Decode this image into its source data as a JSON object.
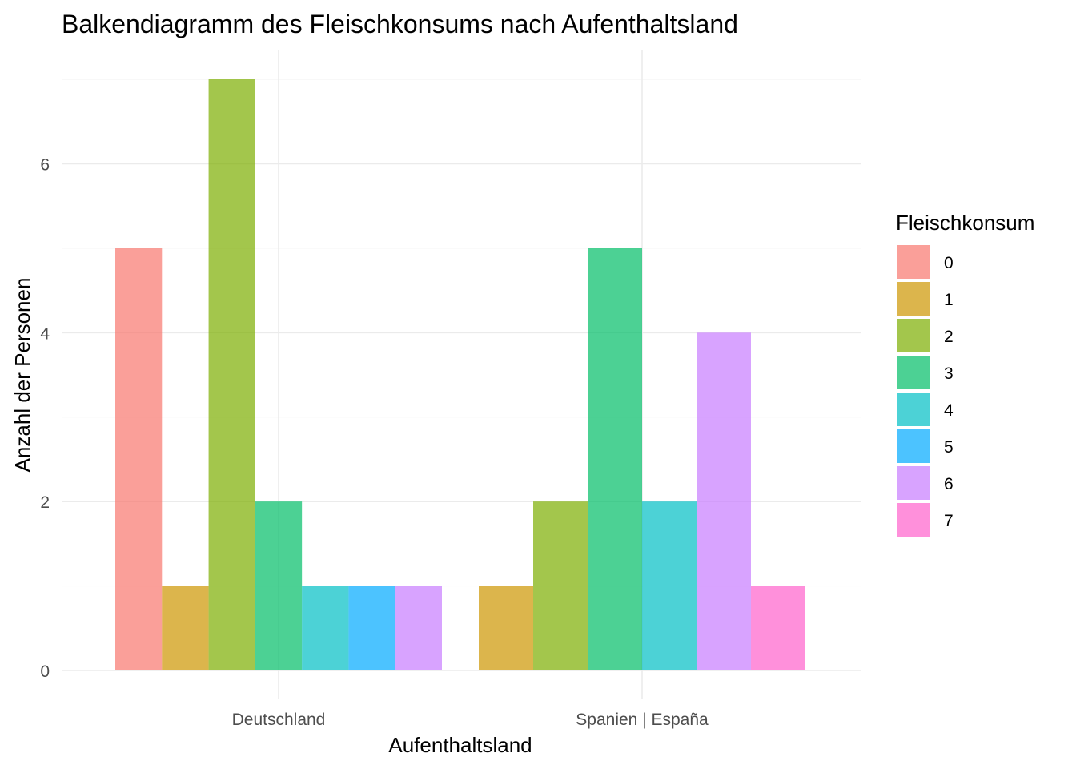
{
  "chart_data": {
    "type": "bar",
    "title": "Balkendiagramm des Fleischkonsums nach Aufenthaltsland",
    "xlabel": "Aufenthaltsland",
    "ylabel": "Anzahl der Personen",
    "categories": [
      "Deutschland",
      "Spanien | España"
    ],
    "ylim": [
      0,
      7
    ],
    "yticks": [
      0,
      2,
      4,
      6
    ],
    "grid": true,
    "legend": {
      "title": "Fleischkonsum",
      "placement": "right",
      "entries": [
        {
          "label": "0",
          "color": "#F8766D"
        },
        {
          "label": "1",
          "color": "#CD9600"
        },
        {
          "label": "2",
          "color": "#7CAE00"
        },
        {
          "label": "3",
          "color": "#00BE67"
        },
        {
          "label": "4",
          "color": "#00BFC4"
        },
        {
          "label": "5",
          "color": "#00A9FF"
        },
        {
          "label": "6",
          "color": "#C77CFF"
        },
        {
          "label": "7",
          "color": "#FF61CC"
        }
      ]
    },
    "bar_opacity": 0.7,
    "series": [
      {
        "name": "0",
        "values": [
          5,
          null
        ]
      },
      {
        "name": "1",
        "values": [
          1,
          1
        ]
      },
      {
        "name": "2",
        "values": [
          7,
          2
        ]
      },
      {
        "name": "3",
        "values": [
          2,
          5
        ]
      },
      {
        "name": "4",
        "values": [
          1,
          2
        ]
      },
      {
        "name": "5",
        "values": [
          1,
          null
        ]
      },
      {
        "name": "6",
        "values": [
          1,
          4
        ]
      },
      {
        "name": "7",
        "values": [
          null,
          1
        ]
      }
    ]
  }
}
